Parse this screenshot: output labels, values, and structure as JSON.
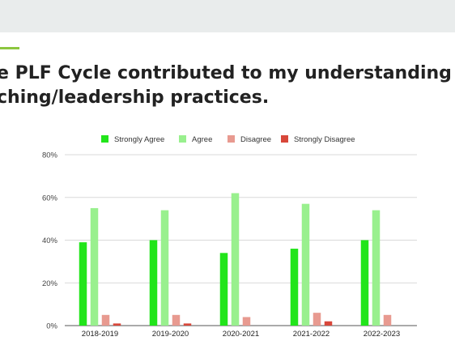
{
  "slide": {
    "title_line1": "e PLF Cycle contributed to my understanding o",
    "title_line2": "ching/leadership practices."
  },
  "colors": {
    "accent": "#8cc63f",
    "strongly_agree": "#22e51b",
    "agree": "#99f08e",
    "disagree": "#e89a90",
    "strongly_disagree": "#d8473a"
  },
  "chart_data": {
    "type": "bar",
    "categories": [
      "2018-2019",
      "2019-2020",
      "2020-2021",
      "2021-2022",
      "2022-2023"
    ],
    "series": [
      {
        "name": "Strongly Agree",
        "values": [
          39,
          40,
          34,
          36,
          40
        ],
        "color": "#22e51b"
      },
      {
        "name": "Agree",
        "values": [
          55,
          54,
          62,
          57,
          54
        ],
        "color": "#99f08e"
      },
      {
        "name": "Disagree",
        "values": [
          5,
          5,
          4,
          6,
          5
        ],
        "color": "#e89a90"
      },
      {
        "name": "Strongly Disagree",
        "values": [
          1,
          1,
          0,
          2,
          0
        ],
        "color": "#d8473a"
      }
    ],
    "yticks": [
      "0%",
      "20%",
      "40%",
      "60%",
      "80%"
    ],
    "ylim": [
      0,
      80
    ],
    "legend": "top",
    "grid": true
  }
}
